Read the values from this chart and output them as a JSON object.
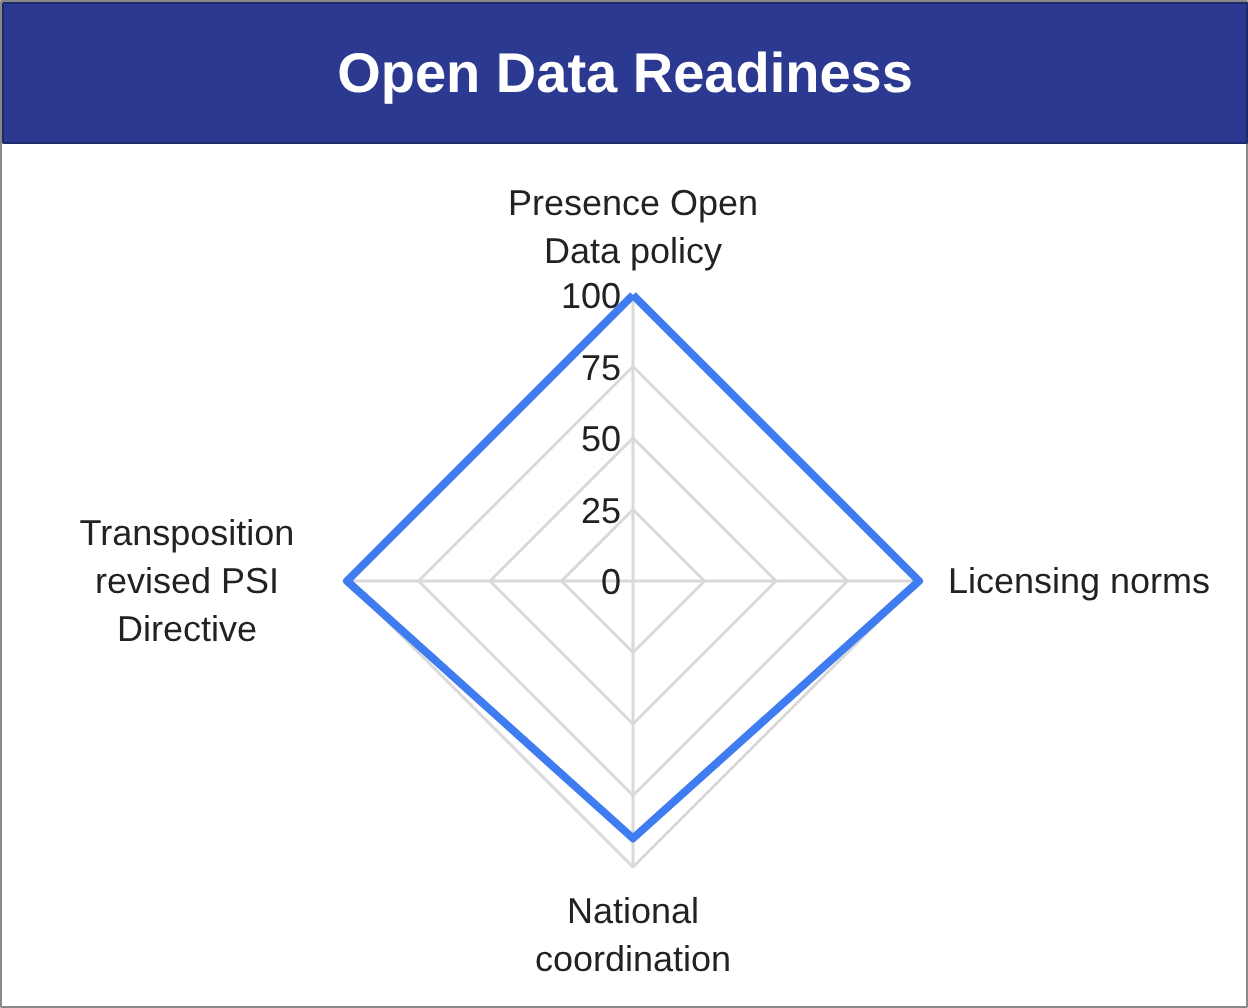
{
  "chart_data": {
    "type": "radar",
    "title": "Open Data Readiness",
    "categories": [
      "Presence Open Data policy",
      "Licensing norms",
      "National coordination",
      "Transposition revised PSI Directive"
    ],
    "series": [
      {
        "color": "#3f7cf0",
        "values": [
          100,
          100,
          90,
          100
        ]
      }
    ],
    "ylim": [
      0,
      100
    ],
    "yticks": [
      0,
      25,
      50,
      75,
      100
    ],
    "grid": true,
    "marker": "none",
    "line_style": "solid"
  }
}
